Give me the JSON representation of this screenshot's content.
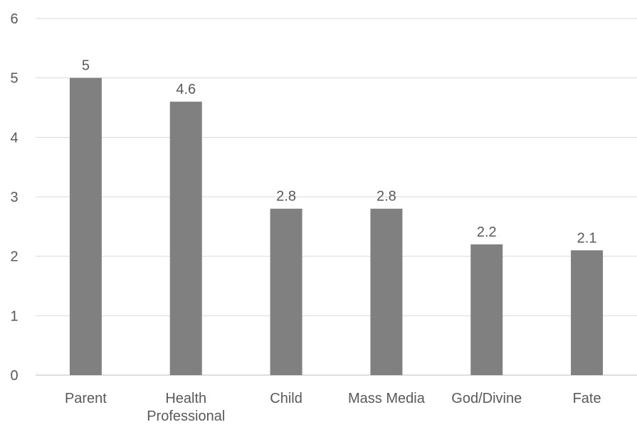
{
  "chart_data": {
    "type": "bar",
    "categories": [
      "Parent",
      "Health Professional",
      "Child",
      "Mass Media",
      "God/Divine",
      "Fate"
    ],
    "category_lines": [
      [
        "Parent"
      ],
      [
        "Health",
        "Professional"
      ],
      [
        "Child"
      ],
      [
        "Mass Media"
      ],
      [
        "God/Divine"
      ],
      [
        "Fate"
      ]
    ],
    "values": [
      5,
      4.6,
      2.8,
      2.8,
      2.2,
      2.1
    ],
    "value_labels": [
      "5",
      "4.6",
      "2.8",
      "2.8",
      "2.2",
      "2.1"
    ],
    "title": "",
    "xlabel": "",
    "ylabel": "",
    "ylim": [
      0,
      6
    ],
    "yticks": [
      "0",
      "1",
      "2",
      "3",
      "4",
      "5",
      "6"
    ],
    "grid": true,
    "bar_color": "#808080"
  }
}
